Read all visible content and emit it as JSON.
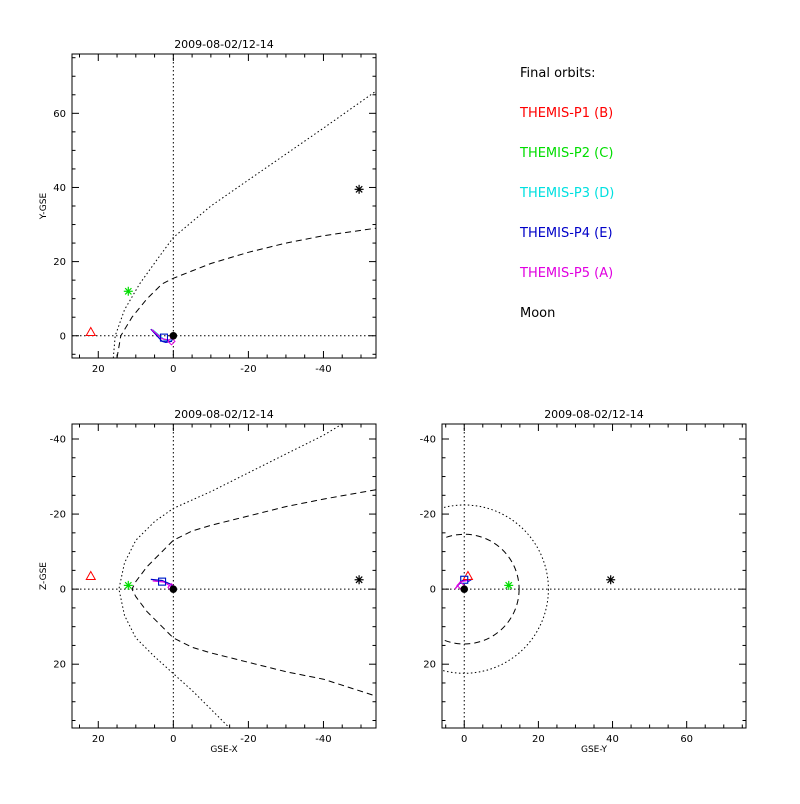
{
  "legend": {
    "title": "Final orbits:",
    "items": [
      {
        "label": "THEMIS-P1 (B)",
        "color": "#ff0000"
      },
      {
        "label": "THEMIS-P2 (C)",
        "color": "#00dd00"
      },
      {
        "label": "THEMIS-P3 (D)",
        "color": "#00e0e0"
      },
      {
        "label": "THEMIS-P4 (E)",
        "color": "#0000c8"
      },
      {
        "label": "THEMIS-P5 (A)",
        "color": "#e000e0"
      },
      {
        "label": "Moon",
        "color": "#000000"
      }
    ]
  },
  "chart_data": [
    {
      "type": "scatter",
      "title": "2009-08-02/12-14",
      "xlabel": "",
      "ylabel": "Y-GSE",
      "xlim": [
        27,
        -54
      ],
      "ylim": [
        76,
        -6
      ],
      "xticks": [
        20,
        0,
        -20,
        -40
      ],
      "yticks": [
        0,
        20,
        40,
        60
      ],
      "markers": [
        {
          "name": "THEMIS-P1 (B)",
          "symbol": "triangle",
          "color": "#ff0000",
          "x": 22,
          "y": 1
        },
        {
          "name": "THEMIS-P2 (C)",
          "symbol": "asterisk",
          "color": "#00dd00",
          "x": 12,
          "y": 12
        },
        {
          "name": "THEMIS-P3 (D)",
          "symbol": "square",
          "color": "#00e0e0",
          "x": 2.5,
          "y": -0.5
        },
        {
          "name": "THEMIS-P4 (E)",
          "symbol": "square",
          "color": "#0000c8",
          "x": 2.5,
          "y": -0.5
        },
        {
          "name": "THEMIS-P5 (A)",
          "symbol": "diamond",
          "color": "#e000e0",
          "x": 0.5,
          "y": -1.5
        },
        {
          "name": "Moon",
          "symbol": "asterisk",
          "color": "#000000",
          "x": -49.5,
          "y": 39.5
        },
        {
          "name": "Earth",
          "symbol": "dot",
          "color": "#000000",
          "x": 0,
          "y": 0
        }
      ],
      "orbits": [
        {
          "color": "#0000c8",
          "points": [
            [
              6,
              1.8
            ],
            [
              3,
              -1.5
            ],
            [
              2,
              -1.8
            ],
            [
              0.5,
              -1.5
            ],
            [
              0,
              0
            ]
          ]
        },
        {
          "color": "#00e0e0",
          "points": [
            [
              5.5,
              1.6
            ],
            [
              2.5,
              -1
            ],
            [
              0.5,
              -1.2
            ]
          ]
        },
        {
          "color": "#e000e0",
          "points": [
            [
              5.8,
              1.7
            ],
            [
              3,
              -0.8
            ],
            [
              1,
              -1.2
            ]
          ]
        }
      ],
      "curves": [
        {
          "style": "dashed",
          "points": [
            [
              15,
              -6
            ],
            [
              14,
              0
            ],
            [
              11,
              5
            ],
            [
              7,
              10
            ],
            [
              3,
              14
            ],
            [
              0,
              15.5
            ],
            [
              -5,
              17.5
            ],
            [
              -10,
              19.5
            ],
            [
              -20,
              22.5
            ],
            [
              -30,
              25
            ],
            [
              -40,
              27
            ],
            [
              -54,
              29
            ]
          ]
        },
        {
          "style": "dotted",
          "points": [
            [
              16,
              -6
            ],
            [
              15.5,
              0
            ],
            [
              13,
              7
            ],
            [
              9,
              14
            ],
            [
              4,
              21
            ],
            [
              0,
              26.5
            ],
            [
              -10,
              35
            ],
            [
              -20,
              42
            ],
            [
              -30,
              49
            ],
            [
              -40,
              56
            ],
            [
              -54,
              66
            ]
          ]
        }
      ],
      "crosshair": [
        0,
        0
      ]
    },
    {
      "type": "scatter",
      "title": "2009-08-02/12-14",
      "xlabel": "GSE-X",
      "ylabel": "Z-GSE",
      "xlim": [
        27,
        -54
      ],
      "ylim": [
        -44,
        37
      ],
      "xticks": [
        20,
        0,
        -20,
        -40
      ],
      "yticks": [
        -40,
        -20,
        0,
        20
      ],
      "markers": [
        {
          "name": "THEMIS-P1 (B)",
          "symbol": "triangle",
          "color": "#ff0000",
          "x": 22,
          "y": -3.5
        },
        {
          "name": "THEMIS-P2 (C)",
          "symbol": "asterisk",
          "color": "#00dd00",
          "x": 12,
          "y": -1
        },
        {
          "name": "THEMIS-P3 (D)",
          "symbol": "square",
          "color": "#00e0e0",
          "x": 3,
          "y": -2
        },
        {
          "name": "THEMIS-P4 (E)",
          "symbol": "square",
          "color": "#0000c8",
          "x": 3,
          "y": -2
        },
        {
          "name": "THEMIS-P5 (A)",
          "symbol": "diamond",
          "color": "#e000e0",
          "x": 0.5,
          "y": -0.5
        },
        {
          "name": "Moon",
          "symbol": "asterisk",
          "color": "#000000",
          "x": -49.5,
          "y": -2.5
        },
        {
          "name": "Earth",
          "symbol": "dot",
          "color": "#000000",
          "x": 0,
          "y": 0
        }
      ],
      "orbits": [
        {
          "color": "#0000c8",
          "points": [
            [
              6,
              -2.6
            ],
            [
              3,
              -2.3
            ],
            [
              0.5,
              -1.2
            ],
            [
              0,
              0
            ]
          ]
        },
        {
          "color": "#e000e0",
          "points": [
            [
              5.5,
              -2.2
            ],
            [
              2.5,
              -1.9
            ],
            [
              0.5,
              -0.6
            ]
          ]
        }
      ],
      "curves": [
        {
          "style": "dashed",
          "points": [
            [
              -54,
              -26.5
            ],
            [
              -40,
              -24
            ],
            [
              -30,
              -22
            ],
            [
              -20,
              -19.5
            ],
            [
              -10,
              -17
            ],
            [
              -5,
              -15.5
            ],
            [
              0,
              -13
            ],
            [
              3,
              -10
            ],
            [
              7,
              -6
            ],
            [
              10,
              -2
            ],
            [
              11,
              0
            ],
            [
              10,
              2
            ],
            [
              7,
              6
            ],
            [
              3,
              10
            ],
            [
              0,
              13
            ],
            [
              -5,
              15.5
            ],
            [
              -10,
              17
            ],
            [
              -20,
              19.5
            ],
            [
              -30,
              22
            ],
            [
              -40,
              24
            ],
            [
              -54,
              28.5
            ]
          ]
        },
        {
          "style": "dotted",
          "points": [
            [
              -45,
              -44
            ],
            [
              -40,
              -41
            ],
            [
              -30,
              -36
            ],
            [
              -20,
              -31
            ],
            [
              -10,
              -26
            ],
            [
              0,
              -21.5
            ],
            [
              5,
              -18
            ],
            [
              10,
              -13
            ],
            [
              13,
              -7
            ],
            [
              14.5,
              0
            ],
            [
              13,
              7
            ],
            [
              10,
              13
            ],
            [
              5,
              18
            ],
            [
              0,
              22.5
            ],
            [
              -5,
              27
            ],
            [
              -10,
              32
            ],
            [
              -15,
              37
            ]
          ]
        }
      ],
      "crosshair": [
        0,
        0
      ]
    },
    {
      "type": "scatter",
      "title": "2009-08-02/12-14",
      "xlabel": "GSE-Y",
      "ylabel": "",
      "xlim": [
        -6,
        76
      ],
      "ylim": [
        -44,
        37
      ],
      "xticks": [
        0,
        20,
        40,
        60
      ],
      "yticks": [
        -40,
        -20,
        0,
        20
      ],
      "markers": [
        {
          "name": "THEMIS-P1 (B)",
          "symbol": "triangle",
          "color": "#ff0000",
          "x": 1,
          "y": -3.5
        },
        {
          "name": "THEMIS-P2 (C)",
          "symbol": "asterisk",
          "color": "#00dd00",
          "x": 12,
          "y": -1
        },
        {
          "name": "THEMIS-P3 (D)",
          "symbol": "square",
          "color": "#00e0e0",
          "x": 0,
          "y": -2.5
        },
        {
          "name": "THEMIS-P4 (E)",
          "symbol": "square",
          "color": "#0000c8",
          "x": 0,
          "y": -2.5
        },
        {
          "name": "THEMIS-P5 (A)",
          "symbol": "diamond",
          "color": "#e000e0",
          "x": -1,
          "y": -1
        },
        {
          "name": "Moon",
          "symbol": "asterisk",
          "color": "#000000",
          "x": 39.5,
          "y": -2.5
        },
        {
          "name": "Earth",
          "symbol": "dot",
          "color": "#000000",
          "x": 0,
          "y": 0
        }
      ],
      "orbits": [
        {
          "color": "#0000c8",
          "points": [
            [
              -2.3,
              -0.3
            ],
            [
              -0.5,
              -2.3
            ],
            [
              2,
              -2.6
            ],
            [
              1,
              -2
            ]
          ]
        },
        {
          "color": "#e000e0",
          "points": [
            [
              -2.5,
              0
            ],
            [
              -1,
              -2
            ],
            [
              1.5,
              -2.4
            ]
          ]
        }
      ],
      "circles": [
        {
          "style": "dashed",
          "cx": 0,
          "cy": 0,
          "r": 14.8
        },
        {
          "style": "dotted",
          "cx": 0,
          "cy": 0,
          "r": 22.7
        }
      ],
      "crosshair": [
        0,
        0
      ]
    }
  ]
}
